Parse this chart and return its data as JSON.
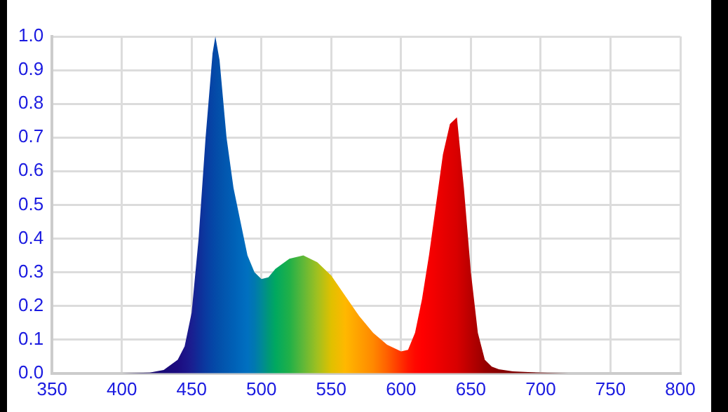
{
  "chart_data": {
    "type": "area",
    "x": [
      400,
      420,
      430,
      440,
      445,
      450,
      455,
      460,
      465,
      467,
      470,
      475,
      480,
      485,
      490,
      495,
      500,
      505,
      510,
      520,
      530,
      540,
      550,
      560,
      570,
      580,
      590,
      600,
      605,
      610,
      615,
      620,
      625,
      630,
      635,
      640,
      645,
      650,
      655,
      660,
      665,
      670,
      680,
      700,
      720
    ],
    "series": [
      {
        "values": [
          0,
          0.002,
          0.01,
          0.04,
          0.08,
          0.18,
          0.4,
          0.7,
          0.95,
          1.0,
          0.93,
          0.7,
          0.55,
          0.45,
          0.35,
          0.3,
          0.28,
          0.285,
          0.31,
          0.34,
          0.35,
          0.33,
          0.29,
          0.23,
          0.17,
          0.12,
          0.085,
          0.065,
          0.07,
          0.12,
          0.22,
          0.35,
          0.5,
          0.65,
          0.74,
          0.76,
          0.55,
          0.3,
          0.12,
          0.04,
          0.02,
          0.012,
          0.006,
          0.002,
          0
        ],
        "colors": [
          "#140050",
          "#1a0a6e",
          "#1a0a78",
          "#1c0c80",
          "#1c1488",
          "#1a1e90",
          "#102c98",
          "#0a3aa0",
          "#0546a6",
          "#044aa8",
          "#0350aa",
          "#0258b0",
          "#0060b6",
          "#0068bc",
          "#0070c0",
          "#0078b0",
          "#008898",
          "#009878",
          "#00a860",
          "#20b048",
          "#60b838",
          "#a0c020",
          "#e0c000",
          "#ffb800",
          "#ffa000",
          "#ff8800",
          "#ff6000",
          "#ff3000",
          "#ff1800",
          "#ff0800",
          "#ff0000",
          "#f80000",
          "#f00000",
          "#e80000",
          "#e00000",
          "#d80000",
          "#c80000",
          "#b80000",
          "#a80000",
          "#980000",
          "#900000",
          "#880000",
          "#800000",
          "#700000",
          "#600000"
        ]
      }
    ],
    "xlim": [
      350,
      800
    ],
    "xticks": [
      350,
      400,
      450,
      500,
      550,
      600,
      650,
      700,
      750,
      800
    ],
    "ylim": [
      0,
      1
    ],
    "yticks": [
      {
        "value": 0,
        "label": "0.0"
      },
      {
        "value": 0.1,
        "label": "0.1"
      },
      {
        "value": 0.2,
        "label": "0.2"
      },
      {
        "value": 0.3,
        "label": "0.3"
      },
      {
        "value": 0.4,
        "label": "0.4"
      },
      {
        "value": 0.5,
        "label": "0.5"
      },
      {
        "value": 0.6,
        "label": "0.6"
      },
      {
        "value": 0.7,
        "label": "0.7"
      },
      {
        "value": 0.8,
        "label": "0.8"
      },
      {
        "value": 0.9,
        "label": "0.9"
      },
      {
        "value": 1,
        "label": "1.0"
      }
    ],
    "grid": true,
    "legend": false,
    "marker": "none"
  }
}
